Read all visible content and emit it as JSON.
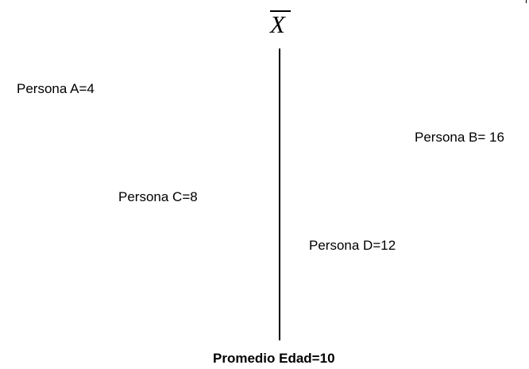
{
  "diagram": {
    "mean_symbol": "X",
    "people": [
      {
        "label": "Persona A=4",
        "value": 4
      },
      {
        "label": "Persona B= 16",
        "value": 16
      },
      {
        "label": "Persona C=8",
        "value": 8
      },
      {
        "label": "Persona D=12",
        "value": 12
      }
    ],
    "footer": "Promedio Edad=10"
  }
}
